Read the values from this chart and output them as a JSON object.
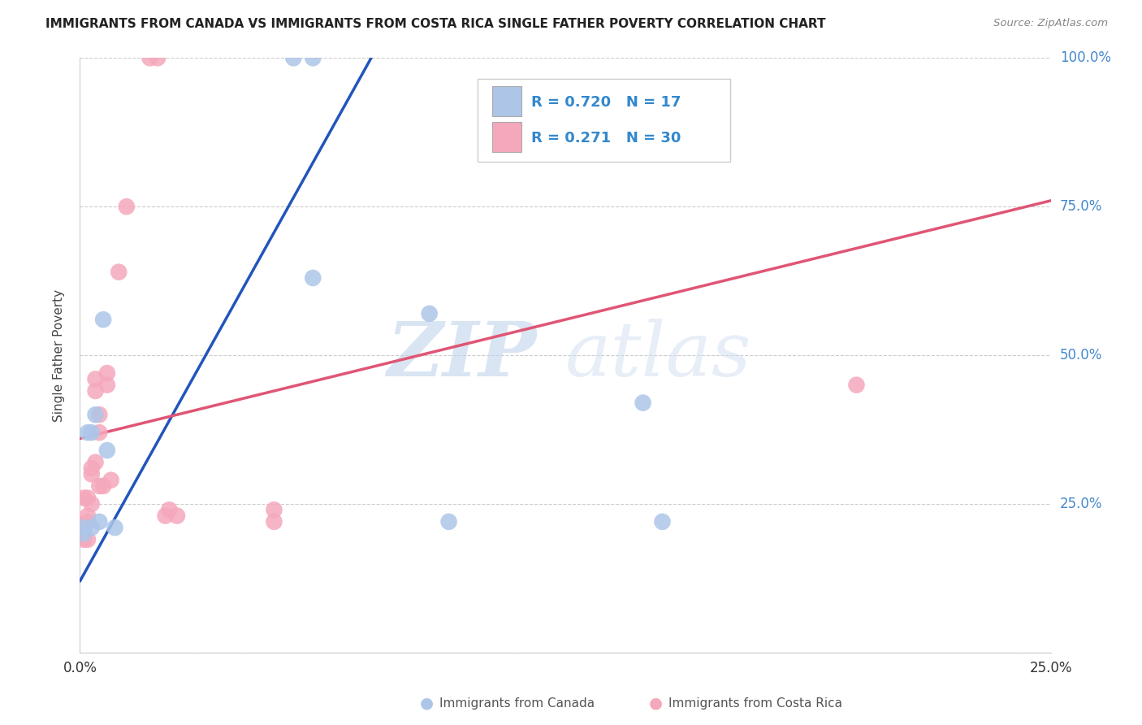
{
  "title": "IMMIGRANTS FROM CANADA VS IMMIGRANTS FROM COSTA RICA SINGLE FATHER POVERTY CORRELATION CHART",
  "source": "Source: ZipAtlas.com",
  "ylabel": "Single Father Poverty",
  "xlim": [
    0.0,
    0.25
  ],
  "ylim": [
    0.0,
    1.0
  ],
  "xticks": [
    0.0,
    0.05,
    0.1,
    0.15,
    0.2,
    0.25
  ],
  "yticks": [
    0.0,
    0.25,
    0.5,
    0.75,
    1.0
  ],
  "canada_color": "#adc6e8",
  "costa_rica_color": "#f5a8bc",
  "canada_line_color": "#2255bb",
  "costa_rica_line_color": "#e05575",
  "dashed_color": "#b0c8e8",
  "canada_R": 0.72,
  "canada_N": 17,
  "costa_rica_R": 0.271,
  "costa_rica_N": 30,
  "watermark_zip": "ZIP",
  "watermark_atlas": "atlas",
  "background_color": "#ffffff",
  "canada_points_x": [
    0.001,
    0.001,
    0.002,
    0.003,
    0.003,
    0.004,
    0.005,
    0.006,
    0.007,
    0.009,
    0.055,
    0.06,
    0.06,
    0.09,
    0.095,
    0.145,
    0.15
  ],
  "canada_points_y": [
    0.2,
    0.21,
    0.37,
    0.37,
    0.21,
    0.4,
    0.22,
    0.56,
    0.34,
    0.21,
    1.0,
    1.0,
    0.63,
    0.57,
    0.22,
    0.42,
    0.22
  ],
  "costa_rica_points_x": [
    0.001,
    0.001,
    0.001,
    0.002,
    0.002,
    0.002,
    0.002,
    0.003,
    0.003,
    0.003,
    0.004,
    0.004,
    0.004,
    0.005,
    0.005,
    0.005,
    0.006,
    0.007,
    0.007,
    0.008,
    0.01,
    0.012,
    0.018,
    0.02,
    0.022,
    0.023,
    0.025,
    0.05,
    0.05,
    0.2
  ],
  "costa_rica_points_y": [
    0.19,
    0.2,
    0.26,
    0.22,
    0.23,
    0.26,
    0.19,
    0.3,
    0.31,
    0.25,
    0.44,
    0.46,
    0.32,
    0.37,
    0.4,
    0.28,
    0.28,
    0.45,
    0.47,
    0.29,
    0.64,
    0.75,
    1.0,
    1.0,
    0.23,
    0.24,
    0.23,
    0.22,
    0.24,
    0.45
  ],
  "blue_line_x0": 0.0,
  "blue_line_y0": 0.12,
  "blue_line_x1": 0.075,
  "blue_line_y1": 1.0,
  "pink_line_x0": 0.0,
  "pink_line_y0": 0.36,
  "pink_line_x1": 0.25,
  "pink_line_y1": 0.76
}
